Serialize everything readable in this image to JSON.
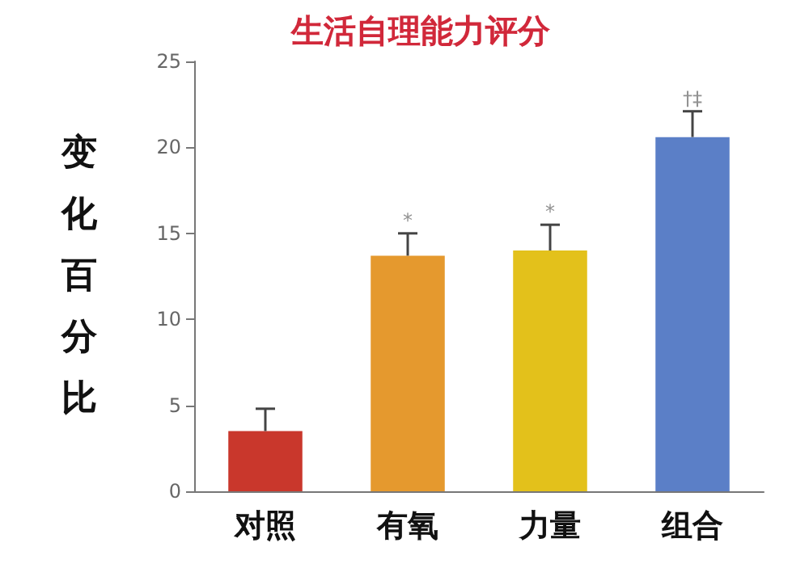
{
  "chart_data": {
    "type": "bar",
    "title": "生活自理能力评分",
    "ylabel": "变化百分比",
    "categories": [
      "对照",
      "有氧",
      "力量",
      "组合"
    ],
    "values": [
      3.5,
      13.7,
      14.0,
      20.6
    ],
    "colors": [
      "#c9372c",
      "#e5992e",
      "#e3c11b",
      "#5b7fc7"
    ],
    "errors": [
      1.3,
      1.3,
      1.5,
      1.5
    ],
    "annotations": [
      {
        "text": "*",
        "x": "有氧",
        "y": 15.0
      },
      {
        "text": "*",
        "x": "力量",
        "y": 15.5
      },
      {
        "text": "†‡",
        "x": "组合",
        "y": 22.1
      }
    ],
    "ylim": [
      0,
      25
    ],
    "yticks": [
      0,
      5,
      10,
      15,
      20,
      25
    ],
    "grid": false
  }
}
